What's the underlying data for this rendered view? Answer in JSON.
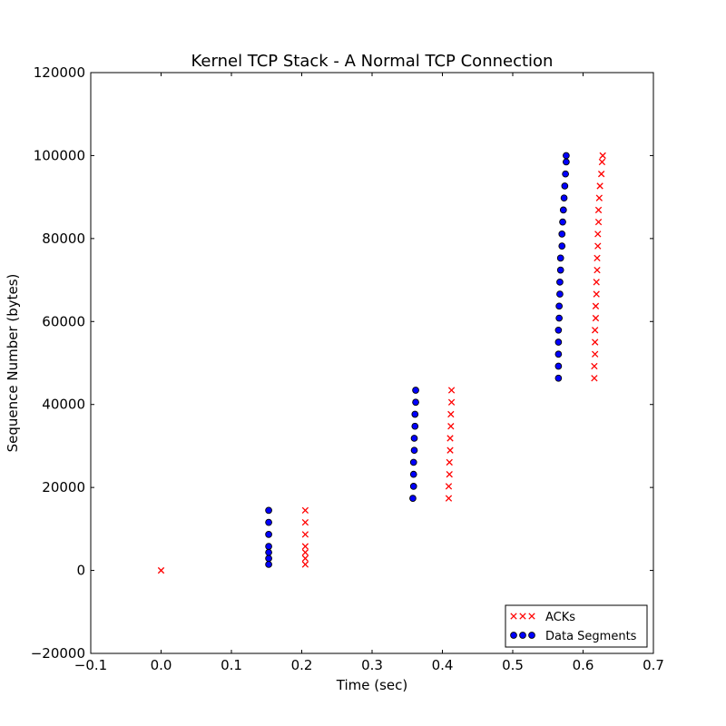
{
  "chart_data": {
    "type": "scatter",
    "title": "Kernel TCP Stack - A Normal TCP Connection",
    "xlabel": "Time (sec)",
    "ylabel": "Sequence Number (bytes)",
    "xlim": [
      -0.1,
      0.7
    ],
    "ylim": [
      -20000,
      120000
    ],
    "xticks": [
      -0.1,
      0.0,
      0.1,
      0.2,
      0.3,
      0.4,
      0.5,
      0.6,
      0.7
    ],
    "xtick_labels": [
      "−0.1",
      "0.0",
      "0.1",
      "0.2",
      "0.3",
      "0.4",
      "0.5",
      "0.6",
      "0.7"
    ],
    "yticks": [
      -20000,
      0,
      20000,
      40000,
      60000,
      80000,
      100000,
      120000
    ],
    "ytick_labels": [
      "−20000",
      "0",
      "20000",
      "40000",
      "60000",
      "80000",
      "100000",
      "120000"
    ],
    "grid": false,
    "legend_position": "lower-right",
    "series": [
      {
        "name": "ACKs",
        "marker": "x",
        "color": "#ff0000",
        "points": [
          [
            0.0,
            0
          ],
          [
            0.205,
            1448
          ],
          [
            0.205,
            2896
          ],
          [
            0.205,
            4344
          ],
          [
            0.205,
            5792
          ],
          [
            0.205,
            8688
          ],
          [
            0.205,
            11584
          ],
          [
            0.205,
            14480
          ],
          [
            0.409,
            17376
          ],
          [
            0.409,
            20272
          ],
          [
            0.41,
            23168
          ],
          [
            0.41,
            26064
          ],
          [
            0.411,
            28960
          ],
          [
            0.411,
            31856
          ],
          [
            0.412,
            34752
          ],
          [
            0.412,
            37648
          ],
          [
            0.413,
            40544
          ],
          [
            0.413,
            43440
          ],
          [
            0.616,
            46336
          ],
          [
            0.616,
            49232
          ],
          [
            0.617,
            52128
          ],
          [
            0.617,
            55024
          ],
          [
            0.617,
            57920
          ],
          [
            0.618,
            60816
          ],
          [
            0.618,
            63712
          ],
          [
            0.619,
            66608
          ],
          [
            0.619,
            69504
          ],
          [
            0.62,
            72400
          ],
          [
            0.62,
            75296
          ],
          [
            0.621,
            78192
          ],
          [
            0.621,
            81088
          ],
          [
            0.622,
            83984
          ],
          [
            0.622,
            86880
          ],
          [
            0.623,
            89776
          ],
          [
            0.624,
            92672
          ],
          [
            0.626,
            95568
          ],
          [
            0.627,
            98464
          ],
          [
            0.628,
            100000
          ]
        ]
      },
      {
        "name": "Data Segments",
        "marker": "o",
        "color": "#0000ff",
        "points": [
          [
            0.153,
            1448
          ],
          [
            0.153,
            2896
          ],
          [
            0.153,
            4344
          ],
          [
            0.153,
            5792
          ],
          [
            0.153,
            8688
          ],
          [
            0.153,
            11584
          ],
          [
            0.153,
            14480
          ],
          [
            0.358,
            17376
          ],
          [
            0.359,
            20272
          ],
          [
            0.359,
            23168
          ],
          [
            0.359,
            26064
          ],
          [
            0.36,
            28960
          ],
          [
            0.36,
            31856
          ],
          [
            0.361,
            34752
          ],
          [
            0.361,
            37648
          ],
          [
            0.362,
            40544
          ],
          [
            0.362,
            43440
          ],
          [
            0.565,
            46336
          ],
          [
            0.565,
            49232
          ],
          [
            0.565,
            52128
          ],
          [
            0.565,
            55024
          ],
          [
            0.565,
            57920
          ],
          [
            0.566,
            60816
          ],
          [
            0.566,
            63712
          ],
          [
            0.567,
            66608
          ],
          [
            0.567,
            69504
          ],
          [
            0.568,
            72400
          ],
          [
            0.568,
            75296
          ],
          [
            0.57,
            78192
          ],
          [
            0.57,
            81088
          ],
          [
            0.571,
            83984
          ],
          [
            0.572,
            86880
          ],
          [
            0.573,
            89776
          ],
          [
            0.574,
            92672
          ],
          [
            0.575,
            95568
          ],
          [
            0.576,
            98464
          ],
          [
            0.576,
            100000
          ]
        ]
      }
    ]
  }
}
